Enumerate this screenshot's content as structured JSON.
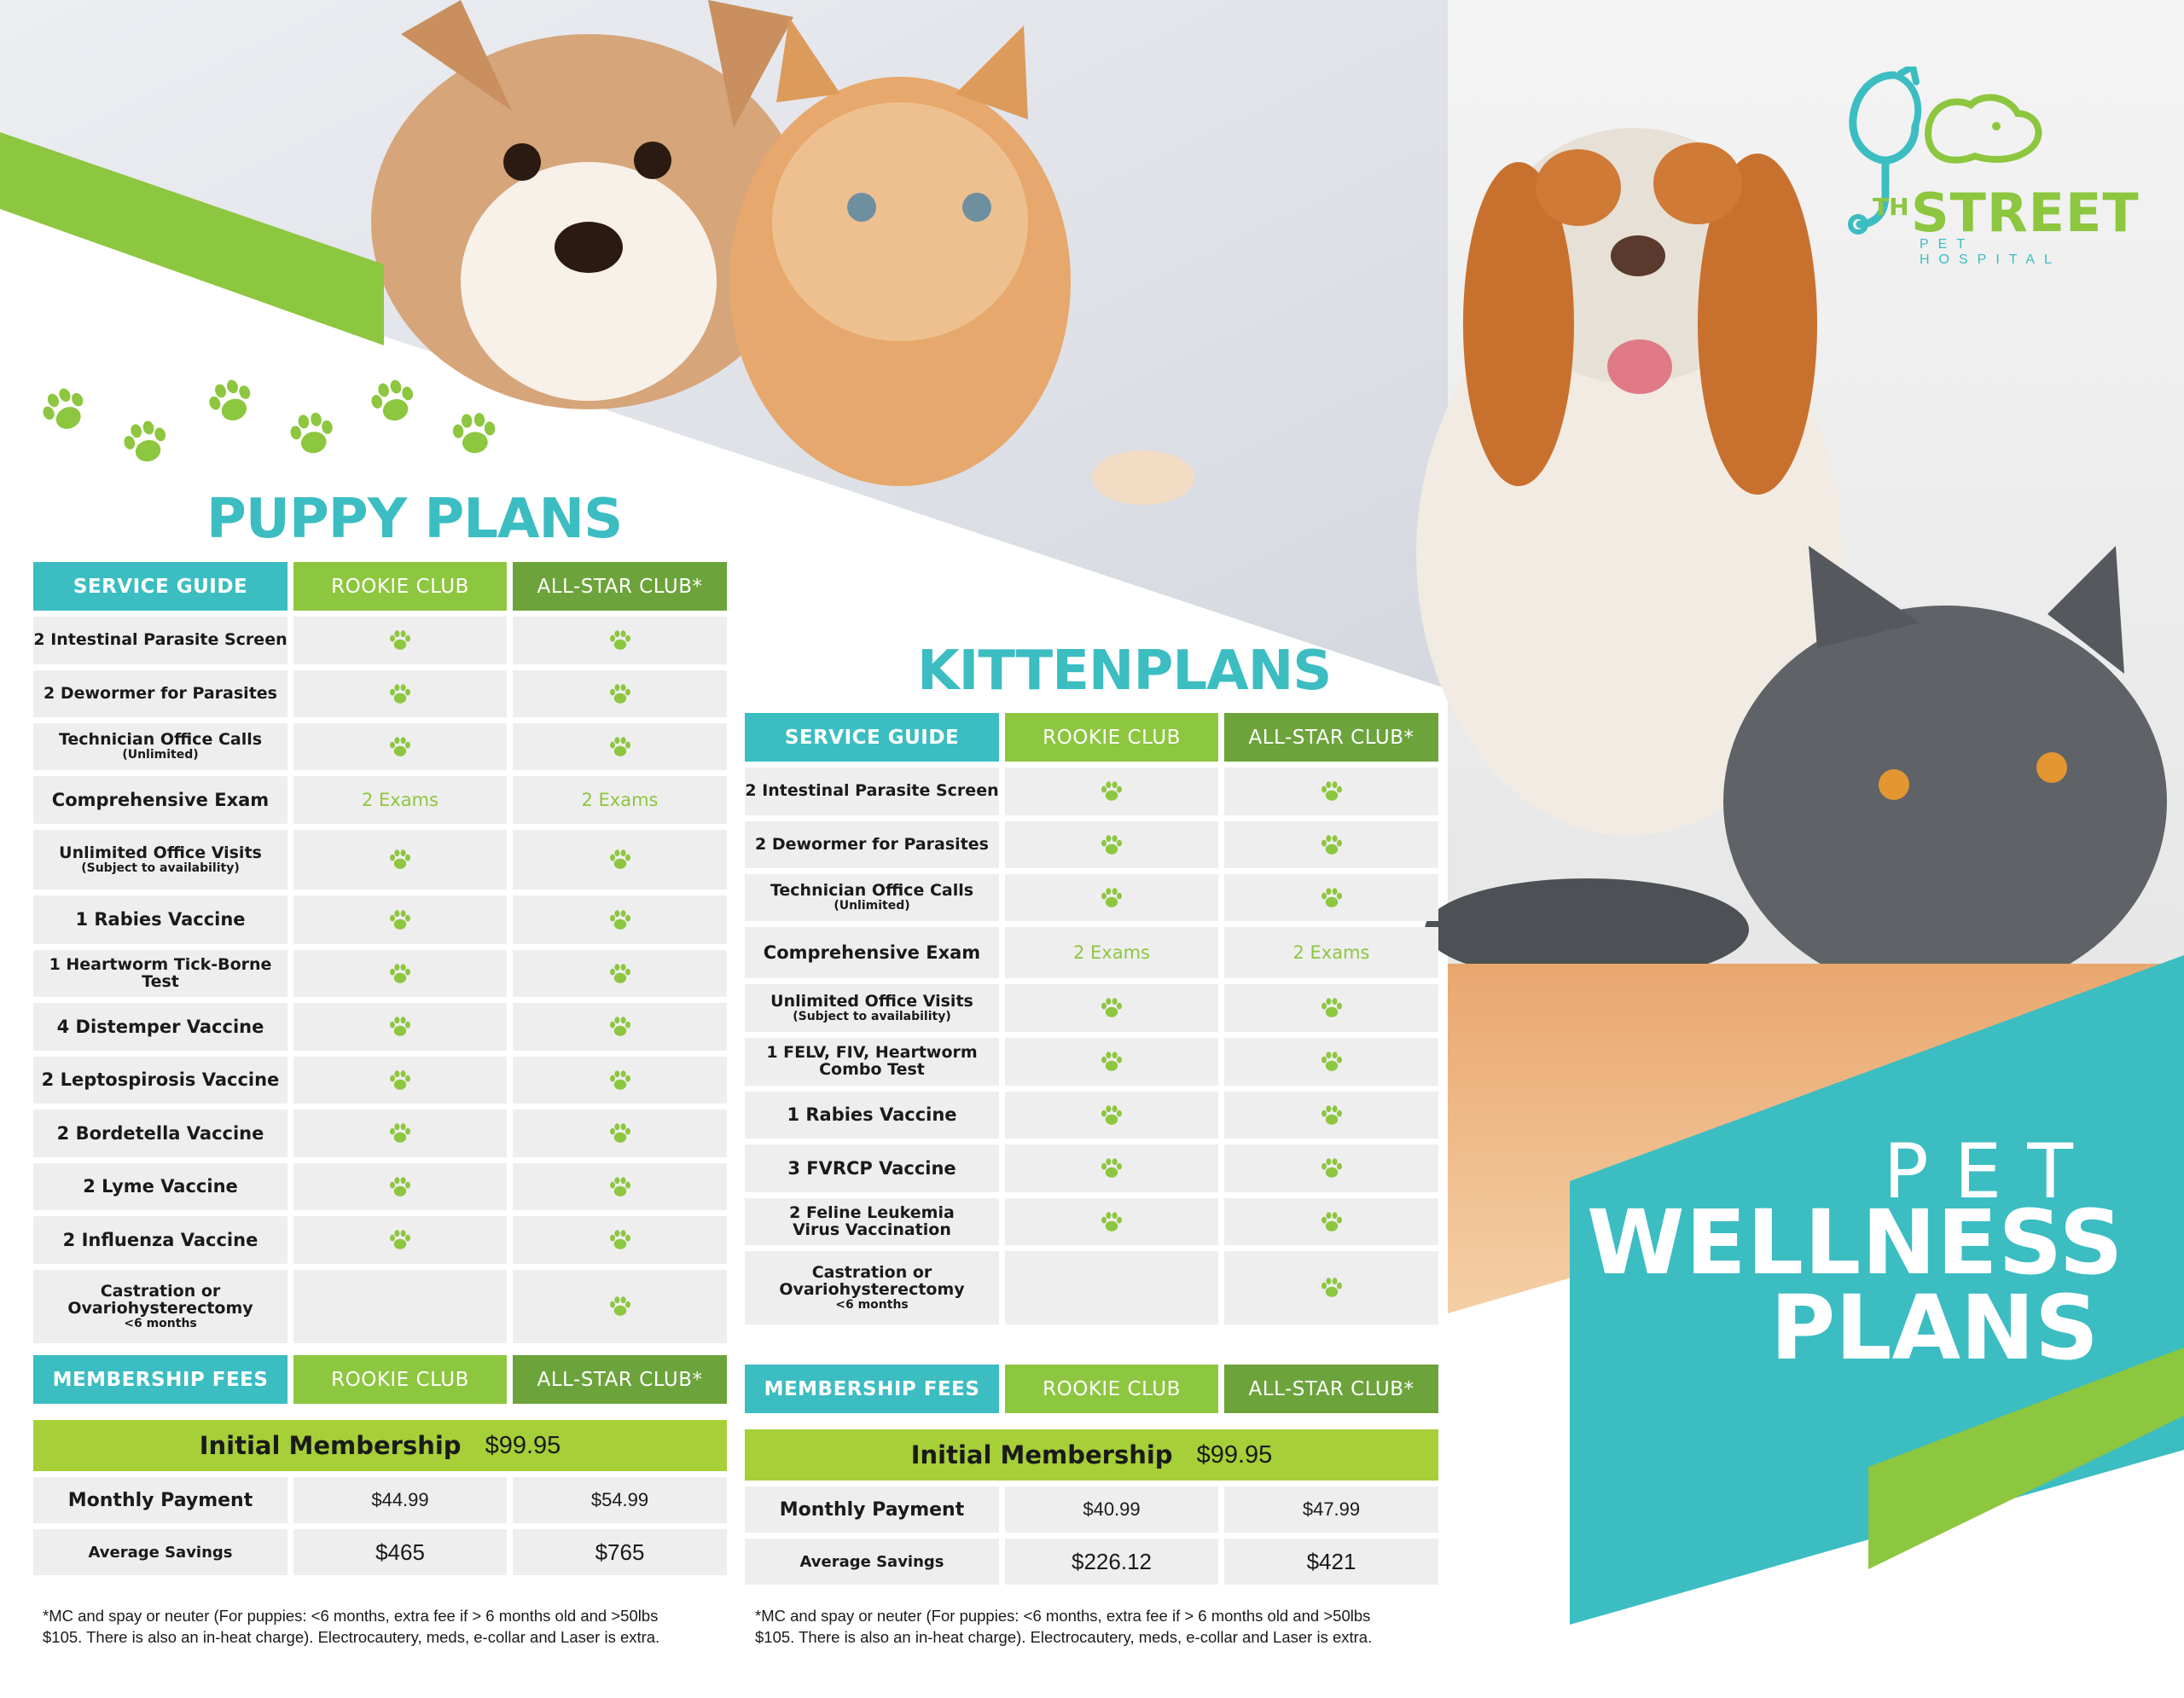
{
  "logo": {
    "th": "TH",
    "street": "STREET",
    "subtitle": "PET HOSPITAL",
    "icon": "stethoscope-cat-dog-icon"
  },
  "title": {
    "line1": "PET",
    "line2": "WELLNESS",
    "line3": "PLANS"
  },
  "colors": {
    "teal": "#3bbdc2",
    "green": "#8dc63f",
    "dark_green": "#6ca33b",
    "lime": "#a6cf38",
    "row_gray": "#eeeeee"
  },
  "puppy": {
    "heading": "PUPPY PLANS",
    "service_header": [
      "SERVICE GUIDE",
      "ROOKIE CLUB",
      "ALL-STAR CLUB*"
    ],
    "rows": [
      {
        "label": "2 Intestinal Parasite Screen",
        "sub": "",
        "rookie": "paw",
        "allstar": "paw"
      },
      {
        "label": "2 Dewormer for Parasites",
        "sub": "",
        "rookie": "paw",
        "allstar": "paw"
      },
      {
        "label": "Technician Office Calls",
        "sub": "(Unlimited)",
        "rookie": "paw",
        "allstar": "paw"
      },
      {
        "label": "Comprehensive Exam",
        "sub": "",
        "rookie": "2 Exams",
        "allstar": "2 Exams"
      },
      {
        "label": "Unlimited Office Visits",
        "sub": "(Subject to availability)",
        "rookie": "paw",
        "allstar": "paw"
      },
      {
        "label": "1 Rabies Vaccine",
        "sub": "",
        "rookie": "paw",
        "allstar": "paw"
      },
      {
        "label": "1 Heartworm Tick-Borne Test",
        "sub": "",
        "rookie": "paw",
        "allstar": "paw"
      },
      {
        "label": "4 Distemper Vaccine",
        "sub": "",
        "rookie": "paw",
        "allstar": "paw"
      },
      {
        "label": "2 Leptospirosis Vaccine",
        "sub": "",
        "rookie": "paw",
        "allstar": "paw"
      },
      {
        "label": "2 Bordetella Vaccine",
        "sub": "",
        "rookie": "paw",
        "allstar": "paw"
      },
      {
        "label": "2 Lyme Vaccine",
        "sub": "",
        "rookie": "paw",
        "allstar": "paw"
      },
      {
        "label": "2 Influenza Vaccine",
        "sub": "",
        "rookie": "paw",
        "allstar": "paw"
      },
      {
        "label": "Castration or\nOvariohysterectomy",
        "sub": "<6 months",
        "rookie": "",
        "allstar": "paw"
      }
    ],
    "fees_header": [
      "MEMBERSHIP FEES",
      "ROOKIE CLUB",
      "ALL-STAR CLUB*"
    ],
    "initial_label": "Initial Membership",
    "initial_value": "$99.95",
    "monthly_label": "Monthly Payment",
    "monthly_rookie": "$44.99",
    "monthly_allstar": "$54.99",
    "savings_label": "Average Savings",
    "savings_rookie": "$465",
    "savings_allstar": "$765",
    "footnote_1": "*MC and spay or neuter (For puppies: <6 months, extra fee if > 6 months old and >50lbs",
    "footnote_2": "$105. There is also an in-heat charge). Electrocautery, meds, e-collar and Laser is extra."
  },
  "kitten": {
    "heading": "KITTENPLANS",
    "service_header": [
      "SERVICE GUIDE",
      "ROOKIE CLUB",
      "ALL-STAR CLUB*"
    ],
    "rows": [
      {
        "label": "2 Intestinal Parasite Screen",
        "sub": "",
        "rookie": "paw",
        "allstar": "paw"
      },
      {
        "label": "2 Dewormer for Parasites",
        "sub": "",
        "rookie": "paw",
        "allstar": "paw"
      },
      {
        "label": "Technician Office Calls",
        "sub": "(Unlimited)",
        "rookie": "paw",
        "allstar": "paw"
      },
      {
        "label": "Comprehensive Exam",
        "sub": "",
        "rookie": "2 Exams",
        "allstar": "2 Exams"
      },
      {
        "label": "Unlimited Office Visits",
        "sub": "(Subject to availability)",
        "rookie": "paw",
        "allstar": "paw"
      },
      {
        "label": "1 FELV, FIV, Heartworm\nCombo Test",
        "sub": "",
        "rookie": "paw",
        "allstar": "paw"
      },
      {
        "label": "1 Rabies Vaccine",
        "sub": "",
        "rookie": "paw",
        "allstar": "paw"
      },
      {
        "label": "3 FVRCP Vaccine",
        "sub": "",
        "rookie": "paw",
        "allstar": "paw"
      },
      {
        "label": "2 Feline Leukemia\nVirus Vaccination",
        "sub": "",
        "rookie": "paw",
        "allstar": "paw"
      },
      {
        "label": "Castration or\nOvariohysterectomy",
        "sub": "<6 months",
        "rookie": "",
        "allstar": "paw"
      }
    ],
    "fees_header": [
      "MEMBERSHIP FEES",
      "ROOKIE CLUB",
      "ALL-STAR CLUB*"
    ],
    "initial_label": "Initial Membership",
    "initial_value": "$99.95",
    "monthly_label": "Monthly Payment",
    "monthly_rookie": "$40.99",
    "monthly_allstar": "$47.99",
    "savings_label": "Average Savings",
    "savings_rookie": "$226.12",
    "savings_allstar": "$421",
    "footnote_1": "*MC and spay or neuter (For puppies: <6 months, extra fee if > 6 months old and >50lbs",
    "footnote_2": "$105. There is also an in-heat charge). Electrocautery, meds, e-collar and Laser is extra."
  }
}
